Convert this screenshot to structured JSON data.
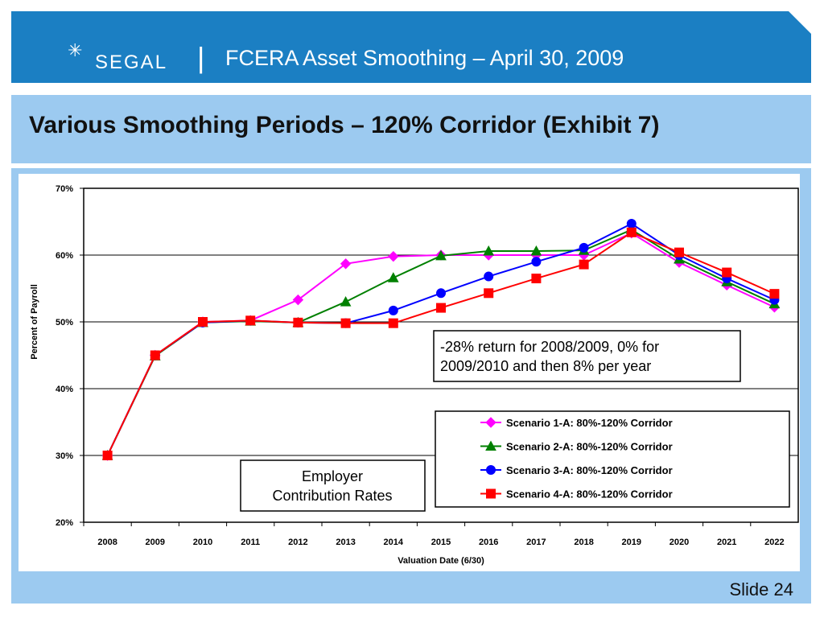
{
  "header": {
    "logo_text": "SEGAL",
    "logo_star": "✳",
    "divider": "|",
    "title": "FCERA Asset Smoothing – April 30, 2009"
  },
  "slide": {
    "title": "Various Smoothing Periods – 120% Corridor (Exhibit 7)",
    "number": "Slide 24"
  },
  "colors": {
    "header_bg": "#1b7fc3",
    "band_bg": "#9ccaf0"
  },
  "chart_data": {
    "type": "line",
    "xlabel": "Valuation Date (6/30)",
    "ylabel": "Percent of Payroll",
    "categories": [
      "2008",
      "2009",
      "2010",
      "2011",
      "2012",
      "2013",
      "2014",
      "2015",
      "2016",
      "2017",
      "2018",
      "2019",
      "2020",
      "2021",
      "2022"
    ],
    "ylim": [
      20,
      70
    ],
    "yticks": [
      "20%",
      "30%",
      "40%",
      "50%",
      "60%",
      "70%"
    ],
    "grid": "horizontal",
    "legend_position": "bottom-right",
    "series": [
      {
        "name": "Scenario 1-A: 80%-120% Corridor",
        "color": "#ff00ff",
        "marker": "diamond",
        "values": [
          30.0,
          45.0,
          50.0,
          50.2,
          53.3,
          58.7,
          59.8,
          60.0,
          60.0,
          60.0,
          60.0,
          63.3,
          58.9,
          55.5,
          52.2
        ]
      },
      {
        "name": "Scenario 2-A: 80%-120% Corridor",
        "color": "#008000",
        "marker": "triangle",
        "values": [
          30.0,
          44.9,
          49.9,
          50.1,
          49.9,
          53.0,
          56.6,
          59.9,
          60.6,
          60.6,
          60.7,
          63.8,
          59.4,
          56.0,
          52.7
        ]
      },
      {
        "name": "Scenario 3-A: 80%-120% Corridor",
        "color": "#0000ff",
        "marker": "circle",
        "values": [
          30.0,
          45.0,
          49.9,
          50.2,
          49.9,
          49.8,
          51.7,
          54.3,
          56.8,
          59.0,
          61.1,
          64.7,
          60.0,
          56.5,
          53.3
        ]
      },
      {
        "name": "Scenario 4-A: 80%-120% Corridor",
        "color": "#ff0000",
        "marker": "square",
        "values": [
          30.0,
          45.0,
          50.0,
          50.2,
          49.9,
          49.8,
          49.8,
          52.1,
          54.3,
          56.5,
          58.6,
          63.4,
          60.4,
          57.4,
          54.2
        ]
      }
    ],
    "annotations": [
      {
        "lines": [
          "-28% return for 2008/2009, 0% for",
          "2009/2010 and then 8% per year"
        ]
      },
      {
        "lines": [
          "Employer",
          "Contribution Rates"
        ]
      }
    ]
  }
}
